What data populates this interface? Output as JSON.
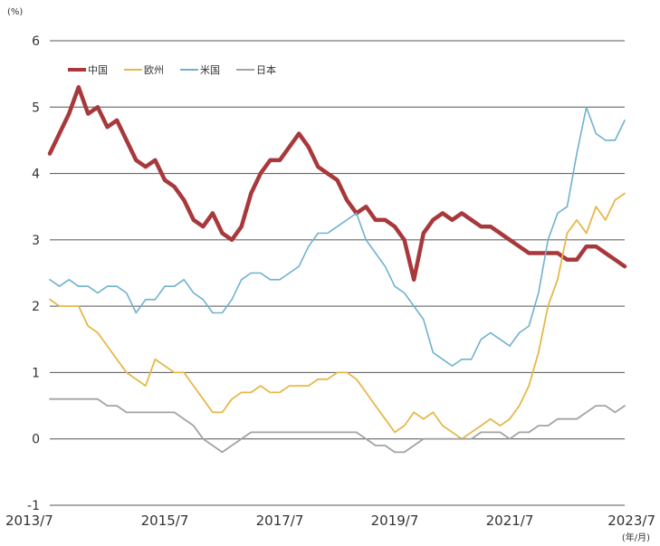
{
  "chart_data": {
    "type": "line",
    "title": "",
    "y_unit": "(%)",
    "x_unit": "(年/月)",
    "ylim": [
      -1,
      6
    ],
    "y_ticks": [
      -1,
      0,
      1,
      2,
      3,
      4,
      5,
      6
    ],
    "x_range": [
      "2013-07",
      "2023-07"
    ],
    "x_ticks": [
      "2013/7",
      "2015/7",
      "2017/7",
      "2019/7",
      "2021/7",
      "2023/7"
    ],
    "grid": true,
    "legend_position": "top-left",
    "series": [
      {
        "name": "中国",
        "color": "#a8383b",
        "points": [
          [
            "2013-07",
            4.3
          ],
          [
            "2013-09",
            4.6
          ],
          [
            "2013-11",
            4.9
          ],
          [
            "2014-01",
            5.3
          ],
          [
            "2014-03",
            4.9
          ],
          [
            "2014-05",
            5.0
          ],
          [
            "2014-07",
            4.7
          ],
          [
            "2014-09",
            4.8
          ],
          [
            "2014-11",
            4.5
          ],
          [
            "2015-01",
            4.2
          ],
          [
            "2015-03",
            4.1
          ],
          [
            "2015-05",
            4.2
          ],
          [
            "2015-07",
            3.9
          ],
          [
            "2015-09",
            3.8
          ],
          [
            "2015-11",
            3.6
          ],
          [
            "2016-01",
            3.3
          ],
          [
            "2016-03",
            3.2
          ],
          [
            "2016-05",
            3.4
          ],
          [
            "2016-07",
            3.1
          ],
          [
            "2016-09",
            3.0
          ],
          [
            "2016-11",
            3.2
          ],
          [
            "2017-01",
            3.7
          ],
          [
            "2017-03",
            4.0
          ],
          [
            "2017-05",
            4.2
          ],
          [
            "2017-07",
            4.2
          ],
          [
            "2017-09",
            4.4
          ],
          [
            "2017-11",
            4.6
          ],
          [
            "2018-01",
            4.4
          ],
          [
            "2018-03",
            4.1
          ],
          [
            "2018-05",
            4.0
          ],
          [
            "2018-07",
            3.9
          ],
          [
            "2018-09",
            3.6
          ],
          [
            "2018-11",
            3.4
          ],
          [
            "2019-01",
            3.5
          ],
          [
            "2019-03",
            3.3
          ],
          [
            "2019-05",
            3.3
          ],
          [
            "2019-07",
            3.2
          ],
          [
            "2019-09",
            3.0
          ],
          [
            "2019-11",
            2.4
          ],
          [
            "2020-01",
            3.1
          ],
          [
            "2020-03",
            3.3
          ],
          [
            "2020-05",
            3.4
          ],
          [
            "2020-07",
            3.3
          ],
          [
            "2020-09",
            3.4
          ],
          [
            "2020-11",
            3.3
          ],
          [
            "2021-01",
            3.2
          ],
          [
            "2021-03",
            3.2
          ],
          [
            "2021-05",
            3.1
          ],
          [
            "2021-07",
            3.0
          ],
          [
            "2021-09",
            2.9
          ],
          [
            "2021-11",
            2.8
          ],
          [
            "2022-01",
            2.8
          ],
          [
            "2022-03",
            2.8
          ],
          [
            "2022-05",
            2.8
          ],
          [
            "2022-07",
            2.7
          ],
          [
            "2022-09",
            2.7
          ],
          [
            "2022-11",
            2.9
          ],
          [
            "2023-01",
            2.9
          ],
          [
            "2023-03",
            2.8
          ],
          [
            "2023-05",
            2.7
          ],
          [
            "2023-07",
            2.6
          ]
        ]
      },
      {
        "name": "欧州",
        "color": "#e6b84a",
        "points": [
          [
            "2013-07",
            2.1
          ],
          [
            "2013-09",
            2.0
          ],
          [
            "2013-11",
            2.0
          ],
          [
            "2014-01",
            2.0
          ],
          [
            "2014-03",
            1.7
          ],
          [
            "2014-05",
            1.6
          ],
          [
            "2014-07",
            1.4
          ],
          [
            "2014-09",
            1.2
          ],
          [
            "2014-11",
            1.0
          ],
          [
            "2015-01",
            0.9
          ],
          [
            "2015-03",
            0.8
          ],
          [
            "2015-05",
            1.2
          ],
          [
            "2015-07",
            1.1
          ],
          [
            "2015-09",
            1.0
          ],
          [
            "2015-11",
            1.0
          ],
          [
            "2016-01",
            0.8
          ],
          [
            "2016-03",
            0.6
          ],
          [
            "2016-05",
            0.4
          ],
          [
            "2016-07",
            0.4
          ],
          [
            "2016-09",
            0.6
          ],
          [
            "2016-11",
            0.7
          ],
          [
            "2017-01",
            0.7
          ],
          [
            "2017-03",
            0.8
          ],
          [
            "2017-05",
            0.7
          ],
          [
            "2017-07",
            0.7
          ],
          [
            "2017-09",
            0.8
          ],
          [
            "2017-11",
            0.8
          ],
          [
            "2018-01",
            0.8
          ],
          [
            "2018-03",
            0.9
          ],
          [
            "2018-05",
            0.9
          ],
          [
            "2018-07",
            1.0
          ],
          [
            "2018-09",
            1.0
          ],
          [
            "2018-11",
            0.9
          ],
          [
            "2019-01",
            0.7
          ],
          [
            "2019-03",
            0.5
          ],
          [
            "2019-05",
            0.3
          ],
          [
            "2019-07",
            0.1
          ],
          [
            "2019-09",
            0.2
          ],
          [
            "2019-11",
            0.4
          ],
          [
            "2020-01",
            0.3
          ],
          [
            "2020-03",
            0.4
          ],
          [
            "2020-05",
            0.2
          ],
          [
            "2020-07",
            0.1
          ],
          [
            "2020-09",
            0.0
          ],
          [
            "2020-11",
            0.1
          ],
          [
            "2021-01",
            0.2
          ],
          [
            "2021-03",
            0.3
          ],
          [
            "2021-05",
            0.2
          ],
          [
            "2021-07",
            0.3
          ],
          [
            "2021-09",
            0.5
          ],
          [
            "2021-11",
            0.8
          ],
          [
            "2022-01",
            1.3
          ],
          [
            "2022-03",
            2.0
          ],
          [
            "2022-05",
            2.4
          ],
          [
            "2022-07",
            3.1
          ],
          [
            "2022-09",
            3.3
          ],
          [
            "2022-11",
            3.1
          ],
          [
            "2023-01",
            3.5
          ],
          [
            "2023-03",
            3.3
          ],
          [
            "2023-05",
            3.6
          ],
          [
            "2023-07",
            3.7
          ]
        ]
      },
      {
        "name": "米国",
        "color": "#6fb1cf",
        "points": [
          [
            "2013-07",
            2.4
          ],
          [
            "2013-09",
            2.3
          ],
          [
            "2013-11",
            2.4
          ],
          [
            "2014-01",
            2.3
          ],
          [
            "2014-03",
            2.3
          ],
          [
            "2014-05",
            2.2
          ],
          [
            "2014-07",
            2.3
          ],
          [
            "2014-09",
            2.3
          ],
          [
            "2014-11",
            2.2
          ],
          [
            "2015-01",
            1.9
          ],
          [
            "2015-03",
            2.1
          ],
          [
            "2015-05",
            2.1
          ],
          [
            "2015-07",
            2.3
          ],
          [
            "2015-09",
            2.3
          ],
          [
            "2015-11",
            2.4
          ],
          [
            "2016-01",
            2.2
          ],
          [
            "2016-03",
            2.1
          ],
          [
            "2016-05",
            1.9
          ],
          [
            "2016-07",
            1.9
          ],
          [
            "2016-09",
            2.1
          ],
          [
            "2016-11",
            2.4
          ],
          [
            "2017-01",
            2.5
          ],
          [
            "2017-03",
            2.5
          ],
          [
            "2017-05",
            2.4
          ],
          [
            "2017-07",
            2.4
          ],
          [
            "2017-09",
            2.5
          ],
          [
            "2017-11",
            2.6
          ],
          [
            "2018-01",
            2.9
          ],
          [
            "2018-03",
            3.1
          ],
          [
            "2018-05",
            3.1
          ],
          [
            "2018-07",
            3.2
          ],
          [
            "2018-09",
            3.3
          ],
          [
            "2018-11",
            3.4
          ],
          [
            "2019-01",
            3.0
          ],
          [
            "2019-03",
            2.8
          ],
          [
            "2019-05",
            2.6
          ],
          [
            "2019-07",
            2.3
          ],
          [
            "2019-09",
            2.2
          ],
          [
            "2019-11",
            2.0
          ],
          [
            "2020-01",
            1.8
          ],
          [
            "2020-03",
            1.3
          ],
          [
            "2020-05",
            1.2
          ],
          [
            "2020-07",
            1.1
          ],
          [
            "2020-09",
            1.2
          ],
          [
            "2020-11",
            1.2
          ],
          [
            "2021-01",
            1.5
          ],
          [
            "2021-03",
            1.6
          ],
          [
            "2021-05",
            1.5
          ],
          [
            "2021-07",
            1.4
          ],
          [
            "2021-09",
            1.6
          ],
          [
            "2021-11",
            1.7
          ],
          [
            "2022-01",
            2.2
          ],
          [
            "2022-03",
            3.0
          ],
          [
            "2022-05",
            3.4
          ],
          [
            "2022-07",
            3.5
          ],
          [
            "2022-09",
            4.3
          ],
          [
            "2022-11",
            5.0
          ],
          [
            "2023-01",
            4.6
          ],
          [
            "2023-03",
            4.5
          ],
          [
            "2023-05",
            4.5
          ],
          [
            "2023-07",
            4.8
          ]
        ]
      },
      {
        "name": "日本",
        "color": "#a3a3a3",
        "points": [
          [
            "2013-07",
            0.6
          ],
          [
            "2013-09",
            0.6
          ],
          [
            "2013-11",
            0.6
          ],
          [
            "2014-01",
            0.6
          ],
          [
            "2014-03",
            0.6
          ],
          [
            "2014-05",
            0.6
          ],
          [
            "2014-07",
            0.5
          ],
          [
            "2014-09",
            0.5
          ],
          [
            "2014-11",
            0.4
          ],
          [
            "2015-01",
            0.4
          ],
          [
            "2015-03",
            0.4
          ],
          [
            "2015-05",
            0.4
          ],
          [
            "2015-07",
            0.4
          ],
          [
            "2015-09",
            0.4
          ],
          [
            "2015-11",
            0.3
          ],
          [
            "2016-01",
            0.2
          ],
          [
            "2016-03",
            0.0
          ],
          [
            "2016-05",
            -0.1
          ],
          [
            "2016-07",
            -0.2
          ],
          [
            "2016-09",
            -0.1
          ],
          [
            "2016-11",
            0.0
          ],
          [
            "2017-01",
            0.1
          ],
          [
            "2017-03",
            0.1
          ],
          [
            "2017-05",
            0.1
          ],
          [
            "2017-07",
            0.1
          ],
          [
            "2017-09",
            0.1
          ],
          [
            "2017-11",
            0.1
          ],
          [
            "2018-01",
            0.1
          ],
          [
            "2018-03",
            0.1
          ],
          [
            "2018-05",
            0.1
          ],
          [
            "2018-07",
            0.1
          ],
          [
            "2018-09",
            0.1
          ],
          [
            "2018-11",
            0.1
          ],
          [
            "2019-01",
            0.0
          ],
          [
            "2019-03",
            -0.1
          ],
          [
            "2019-05",
            -0.1
          ],
          [
            "2019-07",
            -0.2
          ],
          [
            "2019-09",
            -0.2
          ],
          [
            "2019-11",
            -0.1
          ],
          [
            "2020-01",
            0.0
          ],
          [
            "2020-03",
            0.0
          ],
          [
            "2020-05",
            0.0
          ],
          [
            "2020-07",
            0.0
          ],
          [
            "2020-09",
            0.0
          ],
          [
            "2020-11",
            0.0
          ],
          [
            "2021-01",
            0.1
          ],
          [
            "2021-03",
            0.1
          ],
          [
            "2021-05",
            0.1
          ],
          [
            "2021-07",
            0.0
          ],
          [
            "2021-09",
            0.1
          ],
          [
            "2021-11",
            0.1
          ],
          [
            "2022-01",
            0.2
          ],
          [
            "2022-03",
            0.2
          ],
          [
            "2022-05",
            0.3
          ],
          [
            "2022-07",
            0.3
          ],
          [
            "2022-09",
            0.3
          ],
          [
            "2022-11",
            0.4
          ],
          [
            "2023-01",
            0.5
          ],
          [
            "2023-03",
            0.5
          ],
          [
            "2023-05",
            0.4
          ],
          [
            "2023-07",
            0.5
          ]
        ]
      }
    ]
  }
}
